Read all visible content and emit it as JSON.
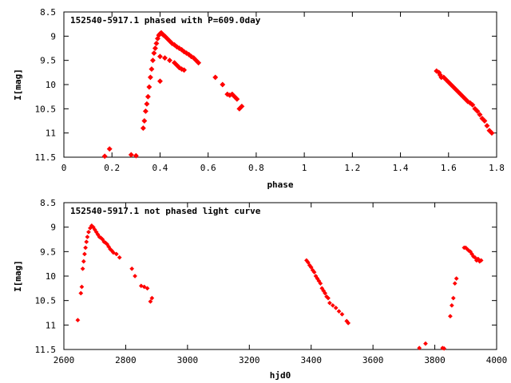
{
  "chart_data": [
    {
      "type": "scatter",
      "title": "152540-5917.1 phased with P=609.0day",
      "xlabel": "phase",
      "ylabel": "I[mag]",
      "xlim": [
        0,
        1.8
      ],
      "ylim": [
        11.5,
        8.5
      ],
      "y_inverted": true,
      "x_ticks": [
        "0",
        "0.2",
        "0.4",
        "0.6",
        "0.8",
        "1",
        "1.2",
        "1.4",
        "1.6",
        "1.8"
      ],
      "y_ticks": [
        "8.5",
        "9",
        "9.5",
        "10",
        "10.5",
        "11",
        "11.5"
      ],
      "grid": false,
      "legend": "none",
      "marker_color": "#ff0000",
      "series": [
        {
          "x": [
            0.17,
            0.19,
            0.28,
            0.3,
            0.33,
            0.335,
            0.34,
            0.345,
            0.35,
            0.355,
            0.36,
            0.365,
            0.37,
            0.375,
            0.38,
            0.385,
            0.39,
            0.395,
            0.4,
            0.405,
            0.41,
            0.415,
            0.42,
            0.43,
            0.44,
            0.45,
            0.46,
            0.47,
            0.48,
            0.49,
            0.5,
            0.51,
            0.52,
            0.53,
            0.54,
            0.55,
            0.56,
            0.4,
            0.42,
            0.44,
            0.46,
            0.47,
            0.48,
            0.49,
            0.5,
            0.4,
            0.63,
            0.66,
            0.68,
            0.69,
            0.7,
            0.71,
            0.72,
            0.73,
            0.74,
            1.55,
            1.56,
            1.565,
            1.57,
            1.58,
            1.59,
            1.6,
            1.61,
            1.62,
            1.63,
            1.64,
            1.65,
            1.66,
            1.67,
            1.68,
            1.69,
            1.7,
            1.71,
            1.72,
            1.73,
            1.74,
            1.75,
            1.76,
            1.77,
            1.78
          ],
          "y": [
            11.48,
            11.33,
            11.45,
            11.47,
            10.9,
            10.75,
            10.55,
            10.4,
            10.25,
            10.05,
            9.85,
            9.68,
            9.5,
            9.35,
            9.25,
            9.15,
            9.05,
            8.98,
            8.95,
            8.93,
            8.96,
            8.98,
            9.0,
            9.05,
            9.1,
            9.15,
            9.18,
            9.22,
            9.25,
            9.28,
            9.32,
            9.35,
            9.38,
            9.42,
            9.45,
            9.5,
            9.55,
            9.42,
            9.45,
            9.5,
            9.55,
            9.6,
            9.65,
            9.68,
            9.7,
            9.93,
            9.85,
            10.0,
            10.2,
            10.22,
            10.2,
            10.25,
            10.3,
            10.5,
            10.45,
            9.72,
            9.75,
            9.8,
            9.85,
            9.85,
            9.9,
            9.95,
            10.0,
            10.05,
            10.1,
            10.15,
            10.2,
            10.25,
            10.3,
            10.35,
            10.38,
            10.42,
            10.5,
            10.55,
            10.62,
            10.7,
            10.75,
            10.85,
            10.95,
            11.0
          ]
        }
      ]
    },
    {
      "type": "scatter",
      "title": "152540-5917.1 not phased light curve",
      "xlabel": "hjd0",
      "ylabel": "I[mag]",
      "xlim": [
        2600,
        4000
      ],
      "ylim": [
        11.5,
        8.5
      ],
      "y_inverted": true,
      "x_ticks": [
        "2600",
        "2800",
        "3000",
        "3200",
        "3400",
        "3600",
        "3800",
        "4000"
      ],
      "y_ticks": [
        "8.5",
        "9",
        "9.5",
        "10",
        "10.5",
        "11",
        "11.5"
      ],
      "grid": false,
      "legend": "none",
      "marker_color": "#ff0000",
      "series": [
        {
          "x": [
            2645,
            2655,
            2658,
            2661,
            2664,
            2667,
            2670,
            2673,
            2676,
            2680,
            2685,
            2690,
            2695,
            2700,
            2705,
            2710,
            2715,
            2720,
            2725,
            2730,
            2735,
            2740,
            2745,
            2750,
            2755,
            2760,
            2770,
            2780,
            2820,
            2830,
            2850,
            2860,
            2870,
            2880,
            2885,
            3385,
            3390,
            3395,
            3400,
            3405,
            3410,
            3415,
            3420,
            3425,
            3430,
            3435,
            3440,
            3445,
            3450,
            3455,
            3460,
            3470,
            3480,
            3490,
            3500,
            3515,
            3520,
            3750,
            3770,
            3825,
            3830,
            3850,
            3855,
            3860,
            3865,
            3870,
            3895,
            3900,
            3905,
            3910,
            3915,
            3920,
            3925,
            3930,
            3935,
            3940,
            3945,
            3950
          ],
          "y": [
            10.9,
            10.35,
            10.22,
            9.85,
            9.7,
            9.55,
            9.42,
            9.3,
            9.2,
            9.1,
            9.02,
            8.97,
            9.0,
            9.05,
            9.1,
            9.15,
            9.2,
            9.22,
            9.25,
            9.3,
            9.32,
            9.35,
            9.4,
            9.45,
            9.48,
            9.52,
            9.55,
            9.62,
            9.85,
            10.0,
            10.2,
            10.22,
            10.25,
            10.52,
            10.45,
            9.68,
            9.72,
            9.78,
            9.82,
            9.88,
            9.92,
            10.0,
            10.05,
            10.1,
            10.15,
            10.25,
            10.3,
            10.35,
            10.42,
            10.45,
            10.55,
            10.6,
            10.65,
            10.72,
            10.78,
            10.92,
            10.96,
            11.47,
            11.38,
            11.47,
            11.48,
            10.82,
            10.6,
            10.45,
            10.15,
            10.05,
            9.42,
            9.42,
            9.45,
            9.48,
            9.5,
            9.55,
            9.6,
            9.62,
            9.68,
            9.65,
            9.7,
            9.68
          ]
        }
      ]
    }
  ]
}
